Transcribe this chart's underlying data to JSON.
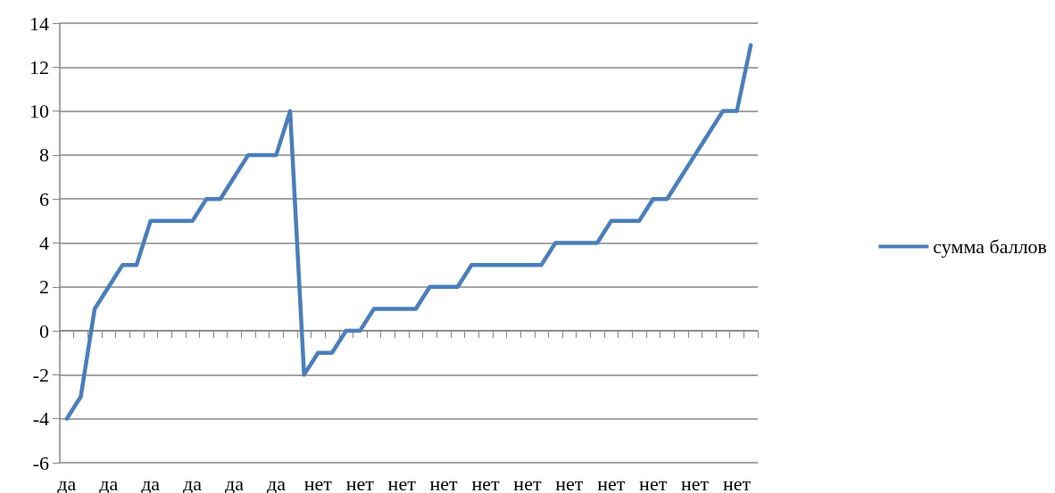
{
  "chart_data": {
    "type": "line",
    "categories": [
      "да",
      null,
      null,
      "да",
      null,
      null,
      "да",
      null,
      null,
      "да",
      null,
      null,
      "да",
      null,
      null,
      "да",
      null,
      null,
      "нет",
      null,
      null,
      "нет",
      null,
      null,
      "нет",
      null,
      null,
      "нет",
      null,
      null,
      "нет",
      null,
      null,
      "нет",
      null,
      null,
      "нет",
      null,
      null,
      "нет",
      null,
      null,
      "нет",
      null,
      null,
      "нет",
      null,
      null,
      "нет",
      null
    ],
    "series": [
      {
        "name": "сумма баллов",
        "color": "#4a7ebb",
        "values": [
          -4,
          -3,
          1,
          2,
          3,
          3,
          5,
          5,
          5,
          5,
          6,
          6,
          7,
          8,
          8,
          8,
          10,
          -2,
          -1,
          -1,
          0,
          0,
          1,
          1,
          1,
          1,
          2,
          2,
          2,
          3,
          3,
          3,
          3,
          3,
          3,
          4,
          4,
          4,
          4,
          5,
          5,
          5,
          6,
          6,
          7,
          8,
          9,
          10,
          10,
          13
        ]
      }
    ],
    "ylim": [
      -6,
      14
    ],
    "yticks": [
      -6,
      -4,
      -2,
      0,
      2,
      4,
      6,
      8,
      10,
      12,
      14
    ],
    "grid": "y",
    "legend": "right",
    "marker": "none",
    "line_style": "solid"
  }
}
